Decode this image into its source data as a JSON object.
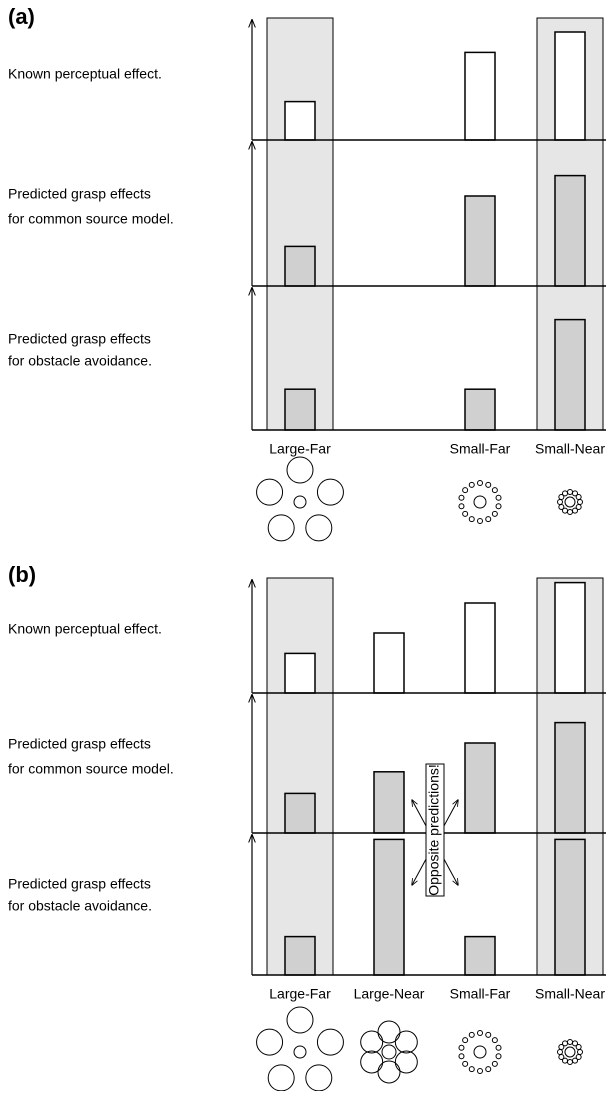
{
  "panels": [
    {
      "label": "(a)",
      "columns": [
        "Large-Far",
        null,
        "Small-Far",
        "Small-Near"
      ],
      "rows": [
        {
          "text": [
            "Known perceptual effect."
          ],
          "fill": "#ffffff",
          "values": [
            32,
            null,
            73,
            90
          ]
        },
        {
          "text": [
            "Predicted grasp effects",
            "for common source model."
          ],
          "fill": "#d0d0d0",
          "values": [
            33,
            null,
            75,
            92
          ]
        },
        {
          "text": [
            "Predicted grasp effects",
            "for obstacle avoidance."
          ],
          "fill": "#d0d0d0",
          "values": [
            34,
            null,
            34,
            92
          ]
        }
      ]
    },
    {
      "label": "(b)",
      "columns": [
        "Large-Far",
        "Large-Near",
        "Small-Far",
        "Small-Near"
      ],
      "rows": [
        {
          "text": [
            "Known perceptual effect."
          ],
          "fill": "#ffffff",
          "values": [
            33,
            50,
            75,
            92
          ]
        },
        {
          "text": [
            "Predicted grasp effects",
            "for common source model."
          ],
          "fill": "#d0d0d0",
          "values": [
            33,
            51,
            75,
            92
          ]
        },
        {
          "text": [
            "Predicted grasp effects",
            "for obstacle avoidance."
          ],
          "fill": "#d0d0d0",
          "values": [
            32,
            113,
            32,
            113
          ]
        }
      ]
    }
  ],
  "annotation": "Opposite predictions!"
}
